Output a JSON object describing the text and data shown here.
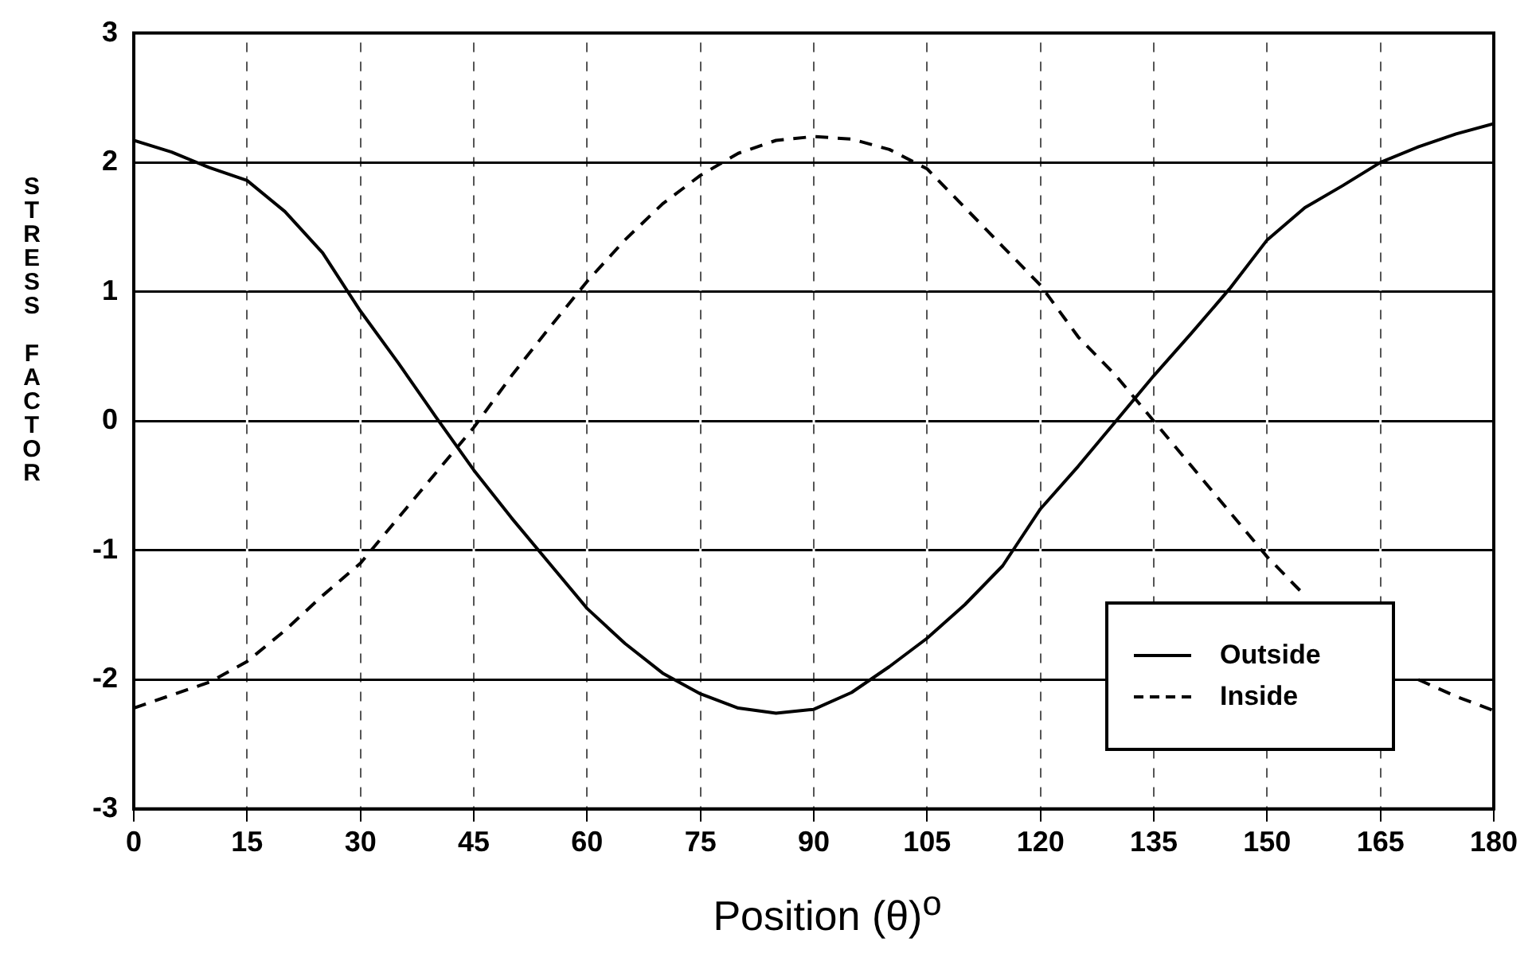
{
  "chart_data": {
    "type": "line",
    "xlabel": "Position (θ)$^{o}$",
    "ylabel": "STRESS FACTOR",
    "x": [
      0,
      5,
      10,
      15,
      20,
      25,
      30,
      35,
      40,
      45,
      50,
      55,
      60,
      65,
      70,
      75,
      80,
      85,
      90,
      95,
      100,
      105,
      110,
      115,
      120,
      125,
      130,
      135,
      140,
      145,
      150,
      155,
      160,
      165,
      170,
      175,
      180
    ],
    "series": [
      {
        "name": "Outside",
        "color": "#000000",
        "line_style": "solid",
        "values": [
          2.17,
          2.08,
          1.96,
          1.86,
          1.62,
          1.3,
          0.85,
          0.45,
          0.03,
          -0.38,
          -0.75,
          -1.1,
          -1.45,
          -1.72,
          -1.95,
          -2.11,
          -2.22,
          -2.26,
          -2.23,
          -2.1,
          -1.9,
          -1.68,
          -1.42,
          -1.12,
          -0.68,
          -0.35,
          0,
          0.35,
          0.68,
          1.02,
          1.4,
          1.65,
          1.82,
          2.0,
          2.12,
          2.22,
          2.3
        ]
      },
      {
        "name": "Inside",
        "color": "#000000",
        "line_style": "dashed",
        "values": [
          -2.22,
          -2.12,
          -2.02,
          -1.86,
          -1.62,
          -1.35,
          -1.1,
          -0.75,
          -0.4,
          -0.05,
          0.35,
          0.72,
          1.08,
          1.4,
          1.68,
          1.9,
          2.07,
          2.17,
          2.2,
          2.18,
          2.1,
          1.95,
          1.65,
          1.35,
          1.05,
          0.65,
          0.35,
          0,
          -0.35,
          -0.7,
          -1.05,
          -1.35,
          null,
          null,
          -2.0,
          -2.13,
          -2.24
        ]
      }
    ],
    "xlim": [
      0,
      180
    ],
    "xticks": [
      0,
      15,
      30,
      45,
      60,
      75,
      90,
      105,
      120,
      135,
      150,
      165,
      180
    ],
    "ylim": [
      -3,
      3
    ],
    "yticks": [
      -3,
      -2,
      -1,
      0,
      1,
      2,
      3
    ],
    "grid": true,
    "legend": "bottom right",
    "marker": "none"
  }
}
